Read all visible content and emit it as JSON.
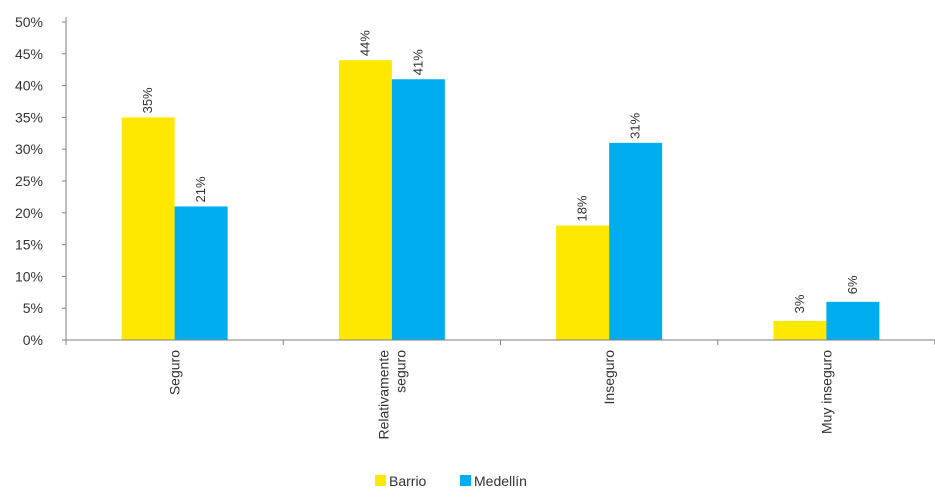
{
  "chart_data": {
    "type": "bar",
    "categories": [
      [
        "Seguro"
      ],
      [
        "Relativamente",
        "seguro"
      ],
      [
        "Inseguro"
      ],
      [
        "Muy inseguro"
      ]
    ],
    "series": [
      {
        "name": "Barrio",
        "values": [
          35,
          44,
          18,
          3
        ],
        "labels": [
          "35%",
          "44%",
          "18%",
          "3%"
        ],
        "color": "#FFE800"
      },
      {
        "name": "Medellín",
        "values": [
          21,
          41,
          31,
          6
        ],
        "labels": [
          "21%",
          "41%",
          "31%",
          "6%"
        ],
        "color": "#00AEEF"
      }
    ],
    "yticks": [
      "0%",
      "5%",
      "10%",
      "15%",
      "20%",
      "25%",
      "30%",
      "35%",
      "40%",
      "45%",
      "50%"
    ],
    "ylim": [
      0,
      50
    ],
    "grid": false,
    "legend_position": "bottom"
  }
}
